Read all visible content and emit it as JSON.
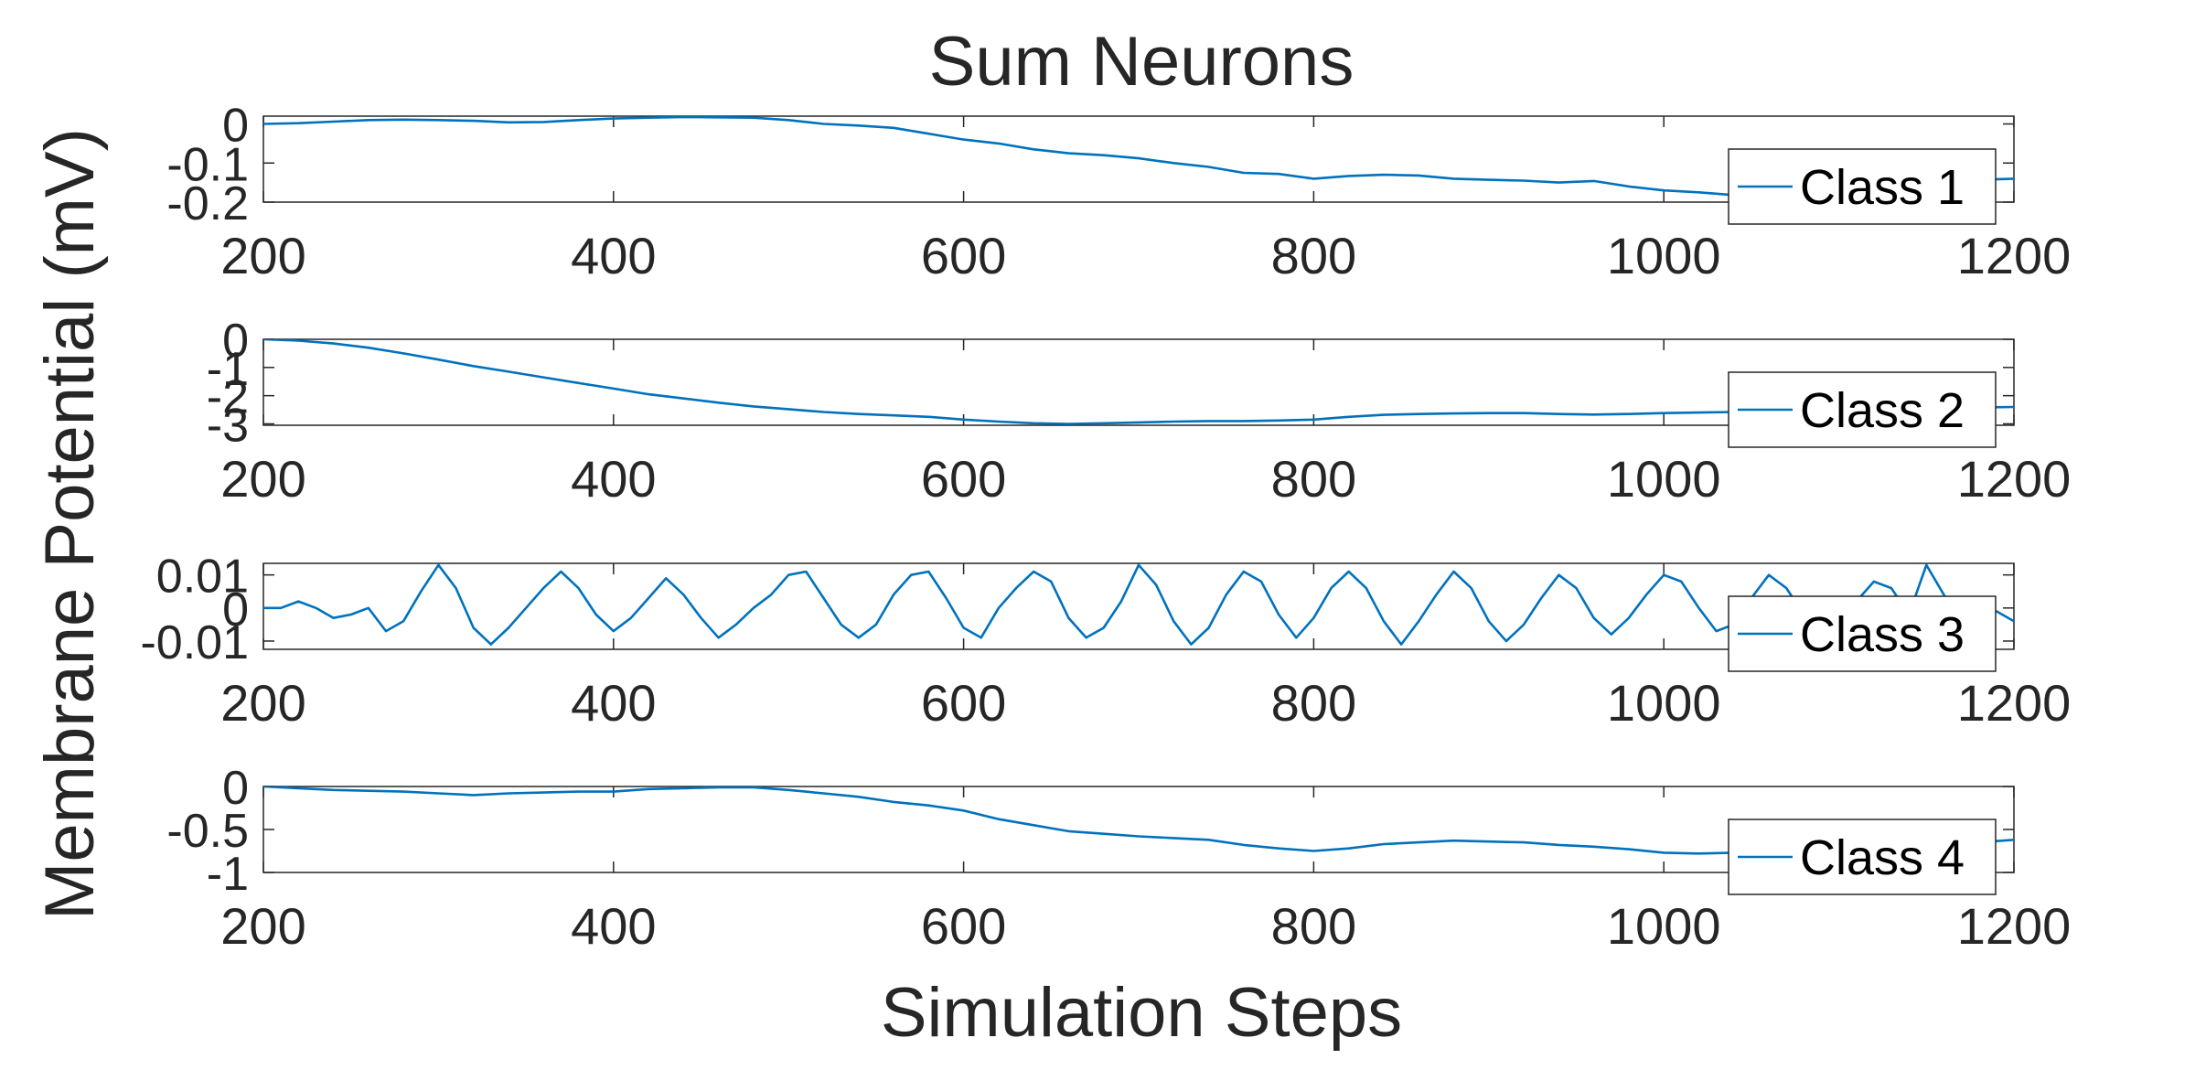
{
  "title": "Sum Neurons",
  "ylabel": "Membrane Potential (mV)",
  "xlabel": "Simulation Steps",
  "line_color": "#0072bd",
  "chart_data": [
    {
      "type": "line",
      "legend": "Class 1",
      "legend_position": "bottom-right",
      "xlim": [
        200,
        1200
      ],
      "ylim": [
        -0.2,
        0.02
      ],
      "xticks": [
        200,
        400,
        600,
        800,
        1000,
        1200
      ],
      "xtick_labels": [
        "200",
        "400",
        "600",
        "800",
        "1000",
        "1200"
      ],
      "yticks": [
        0,
        -0.1,
        -0.2
      ],
      "ytick_labels": [
        "0",
        "-0.1",
        "-0.2"
      ],
      "x": [
        200,
        220,
        240,
        260,
        280,
        300,
        320,
        340,
        360,
        380,
        400,
        420,
        440,
        460,
        480,
        500,
        520,
        540,
        560,
        580,
        600,
        620,
        640,
        660,
        680,
        700,
        720,
        740,
        760,
        780,
        800,
        820,
        840,
        860,
        880,
        900,
        920,
        940,
        960,
        980,
        1000,
        1020,
        1040,
        1060,
        1080,
        1100,
        1120,
        1140,
        1160,
        1180,
        1200
      ],
      "y": [
        0.0,
        0.002,
        0.006,
        0.01,
        0.011,
        0.01,
        0.008,
        0.004,
        0.005,
        0.01,
        0.014,
        0.016,
        0.018,
        0.017,
        0.016,
        0.01,
        0.0,
        -0.004,
        -0.01,
        -0.025,
        -0.04,
        -0.05,
        -0.065,
        -0.075,
        -0.08,
        -0.088,
        -0.1,
        -0.11,
        -0.125,
        -0.128,
        -0.14,
        -0.133,
        -0.13,
        -0.132,
        -0.14,
        -0.143,
        -0.145,
        -0.15,
        -0.146,
        -0.16,
        -0.17,
        -0.175,
        -0.182,
        -0.185,
        -0.178,
        -0.172,
        -0.165,
        -0.158,
        -0.15,
        -0.143,
        -0.14
      ]
    },
    {
      "type": "line",
      "legend": "Class 2",
      "legend_position": "bottom-right",
      "xlim": [
        200,
        1200
      ],
      "ylim": [
        -3.05,
        0
      ],
      "xticks": [
        200,
        400,
        600,
        800,
        1000,
        1200
      ],
      "xtick_labels": [
        "200",
        "400",
        "600",
        "800",
        "1000",
        "1200"
      ],
      "yticks": [
        0,
        -1,
        -2,
        -3
      ],
      "ytick_labels": [
        "0",
        "-1",
        "-2",
        "-3"
      ],
      "x": [
        200,
        220,
        240,
        260,
        280,
        300,
        320,
        340,
        360,
        380,
        400,
        420,
        440,
        460,
        480,
        500,
        520,
        540,
        560,
        580,
        600,
        620,
        640,
        660,
        680,
        700,
        720,
        740,
        760,
        780,
        800,
        820,
        840,
        860,
        880,
        900,
        920,
        940,
        960,
        980,
        1000,
        1020,
        1040,
        1060,
        1080,
        1100,
        1120,
        1140,
        1160,
        1180,
        1200
      ],
      "y": [
        0.0,
        -0.05,
        -0.15,
        -0.3,
        -0.5,
        -0.72,
        -0.95,
        -1.15,
        -1.35,
        -1.55,
        -1.75,
        -1.95,
        -2.1,
        -2.25,
        -2.38,
        -2.48,
        -2.58,
        -2.65,
        -2.7,
        -2.75,
        -2.85,
        -2.92,
        -2.98,
        -3.0,
        -2.98,
        -2.95,
        -2.92,
        -2.9,
        -2.9,
        -2.88,
        -2.85,
        -2.75,
        -2.68,
        -2.65,
        -2.63,
        -2.62,
        -2.62,
        -2.65,
        -2.67,
        -2.65,
        -2.62,
        -2.6,
        -2.58,
        -2.55,
        -2.52,
        -2.5,
        -2.5,
        -2.48,
        -2.45,
        -2.42,
        -2.4
      ]
    },
    {
      "type": "line",
      "legend": "Class 3",
      "legend_position": "bottom-right",
      "xlim": [
        200,
        1200
      ],
      "ylim": [
        -0.0125,
        0.0135
      ],
      "xticks": [
        200,
        400,
        600,
        800,
        1000,
        1200
      ],
      "xtick_labels": [
        "200",
        "400",
        "600",
        "800",
        "1000",
        "1200"
      ],
      "yticks": [
        0.01,
        0,
        -0.01
      ],
      "ytick_labels": [
        "0.01",
        "0",
        "-0.01"
      ],
      "x": [
        200,
        210,
        220,
        230,
        240,
        250,
        260,
        270,
        280,
        290,
        300,
        310,
        320,
        330,
        340,
        350,
        360,
        370,
        380,
        390,
        400,
        410,
        420,
        430,
        440,
        450,
        460,
        470,
        480,
        490,
        500,
        510,
        520,
        530,
        540,
        550,
        560,
        570,
        580,
        590,
        600,
        610,
        620,
        630,
        640,
        650,
        660,
        670,
        680,
        690,
        700,
        710,
        720,
        730,
        740,
        750,
        760,
        770,
        780,
        790,
        800,
        810,
        820,
        830,
        840,
        850,
        860,
        870,
        880,
        890,
        900,
        910,
        920,
        930,
        940,
        950,
        960,
        970,
        980,
        990,
        1000,
        1010,
        1020,
        1030,
        1040,
        1050,
        1060,
        1070,
        1080,
        1090,
        1100,
        1110,
        1120,
        1130,
        1140,
        1150,
        1160,
        1170,
        1180,
        1190,
        1200
      ],
      "y": [
        0.0,
        0.0,
        0.002,
        0.0,
        -0.003,
        -0.002,
        0.0,
        -0.007,
        -0.004,
        0.005,
        0.013,
        0.006,
        -0.006,
        -0.011,
        -0.006,
        0.0,
        0.006,
        0.011,
        0.006,
        -0.002,
        -0.007,
        -0.003,
        0.003,
        0.009,
        0.004,
        -0.003,
        -0.009,
        -0.005,
        0.0,
        0.004,
        0.01,
        0.011,
        0.003,
        -0.005,
        -0.009,
        -0.005,
        0.004,
        0.01,
        0.011,
        0.003,
        -0.006,
        -0.009,
        0.0,
        0.006,
        0.011,
        0.008,
        -0.003,
        -0.009,
        -0.006,
        0.002,
        0.013,
        0.007,
        -0.004,
        -0.011,
        -0.006,
        0.004,
        0.011,
        0.008,
        -0.002,
        -0.009,
        -0.003,
        0.006,
        0.011,
        0.006,
        -0.004,
        -0.011,
        -0.004,
        0.004,
        0.011,
        0.006,
        -0.004,
        -0.01,
        -0.005,
        0.003,
        0.01,
        0.006,
        -0.003,
        -0.008,
        -0.003,
        0.004,
        0.01,
        0.008,
        0.0,
        -0.007,
        -0.005,
        0.003,
        0.01,
        0.006,
        -0.002,
        -0.008,
        -0.005,
        0.002,
        0.008,
        0.006,
        -0.002,
        0.013,
        0.004,
        -0.006,
        -0.003,
        -0.001,
        -0.004
      ]
    },
    {
      "type": "line",
      "legend": "Class 4",
      "legend_position": "bottom-right",
      "xlim": [
        200,
        1200
      ],
      "ylim": [
        -1,
        0
      ],
      "xticks": [
        200,
        400,
        600,
        800,
        1000,
        1200
      ],
      "xtick_labels": [
        "200",
        "400",
        "600",
        "800",
        "1000",
        "1200"
      ],
      "yticks": [
        0,
        -0.5,
        -1
      ],
      "ytick_labels": [
        "0",
        "-0.5",
        "-1"
      ],
      "x": [
        200,
        220,
        240,
        260,
        280,
        300,
        320,
        340,
        360,
        380,
        400,
        420,
        440,
        460,
        480,
        500,
        520,
        540,
        560,
        580,
        600,
        620,
        640,
        660,
        680,
        700,
        720,
        740,
        760,
        780,
        800,
        820,
        840,
        860,
        880,
        900,
        920,
        940,
        960,
        980,
        1000,
        1020,
        1040,
        1060,
        1080,
        1100,
        1120,
        1140,
        1160,
        1180,
        1200
      ],
      "y": [
        0.0,
        -0.02,
        -0.04,
        -0.05,
        -0.06,
        -0.08,
        -0.1,
        -0.08,
        -0.07,
        -0.06,
        -0.06,
        -0.03,
        -0.02,
        -0.01,
        -0.01,
        -0.04,
        -0.08,
        -0.12,
        -0.18,
        -0.22,
        -0.28,
        -0.38,
        -0.45,
        -0.52,
        -0.55,
        -0.58,
        -0.6,
        -0.62,
        -0.68,
        -0.72,
        -0.75,
        -0.72,
        -0.67,
        -0.65,
        -0.63,
        -0.64,
        -0.65,
        -0.68,
        -0.7,
        -0.73,
        -0.77,
        -0.78,
        -0.77,
        -0.74,
        -0.71,
        -0.69,
        -0.68,
        -0.67,
        -0.66,
        -0.65,
        -0.62
      ]
    }
  ]
}
